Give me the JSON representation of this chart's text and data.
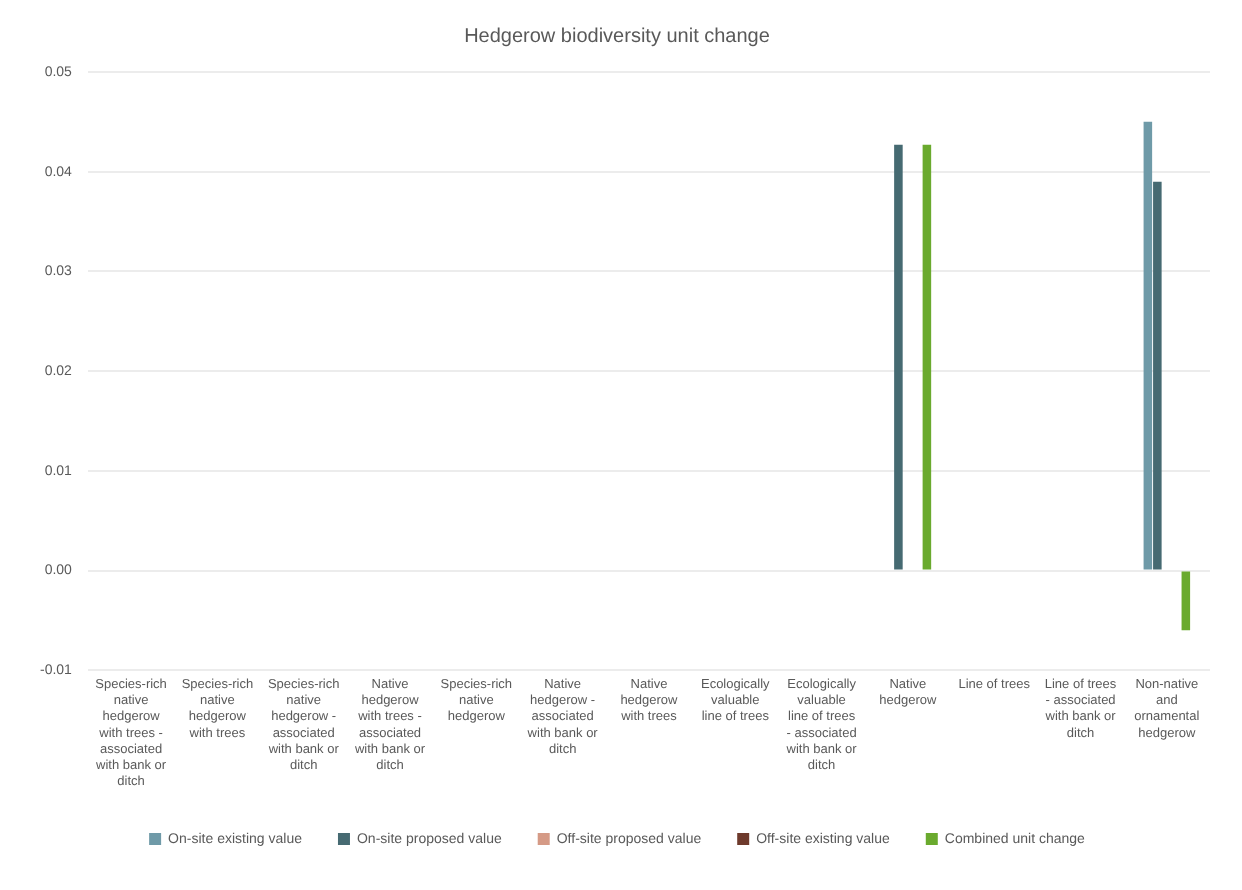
{
  "chart_data": {
    "type": "bar",
    "title": "Hedgerow biodiversity unit change",
    "categories": [
      "Species-rich native hedgerow with trees - associated with bank or ditch",
      "Species-rich native hedgerow with trees",
      "Species-rich native hedgerow - associated with bank or ditch",
      "Native hedgerow with trees - associated with bank or ditch",
      "Species-rich native hedgerow",
      "Native hedgerow - associated with bank or ditch",
      "Native hedgerow with trees",
      "Ecologically valuable line of trees",
      "Ecologically valuable line of trees - associated with bank or ditch",
      "Native hedgerow",
      "Line of trees",
      "Line of trees - associated with bank or ditch",
      "Non-native and ornamental hedgerow"
    ],
    "series": [
      {
        "name": "On-site existing value",
        "color": "#6f9aa8",
        "values": [
          0,
          0,
          0,
          0,
          0,
          0,
          0,
          0,
          0,
          0,
          0,
          0,
          0.045
        ]
      },
      {
        "name": "On-site proposed value",
        "color": "#466a72",
        "values": [
          0,
          0,
          0,
          0,
          0,
          0,
          0,
          0,
          0,
          0.0427,
          0,
          0,
          0.039
        ]
      },
      {
        "name": "Off-site proposed value",
        "color": "#d59a86",
        "values": [
          0,
          0,
          0,
          0,
          0,
          0,
          0,
          0,
          0,
          0,
          0,
          0,
          0
        ]
      },
      {
        "name": "Off-site existing value",
        "color": "#6e3a2c",
        "values": [
          0,
          0,
          0,
          0,
          0,
          0,
          0,
          0,
          0,
          0,
          0,
          0,
          0
        ]
      },
      {
        "name": "Combined unit change",
        "color": "#6aaa2e",
        "values": [
          0,
          0,
          0,
          0,
          0,
          0,
          0,
          0,
          0,
          0.0427,
          0,
          0,
          -0.006
        ]
      }
    ],
    "ylim": [
      -0.01,
      0.05
    ],
    "yticks": [
      -0.01,
      {
        "value": 0,
        "label": "0.00"
      },
      0.01,
      0.02,
      0.03,
      0.04,
      0.05
    ],
    "grid": "y",
    "legend": "bottom"
  }
}
